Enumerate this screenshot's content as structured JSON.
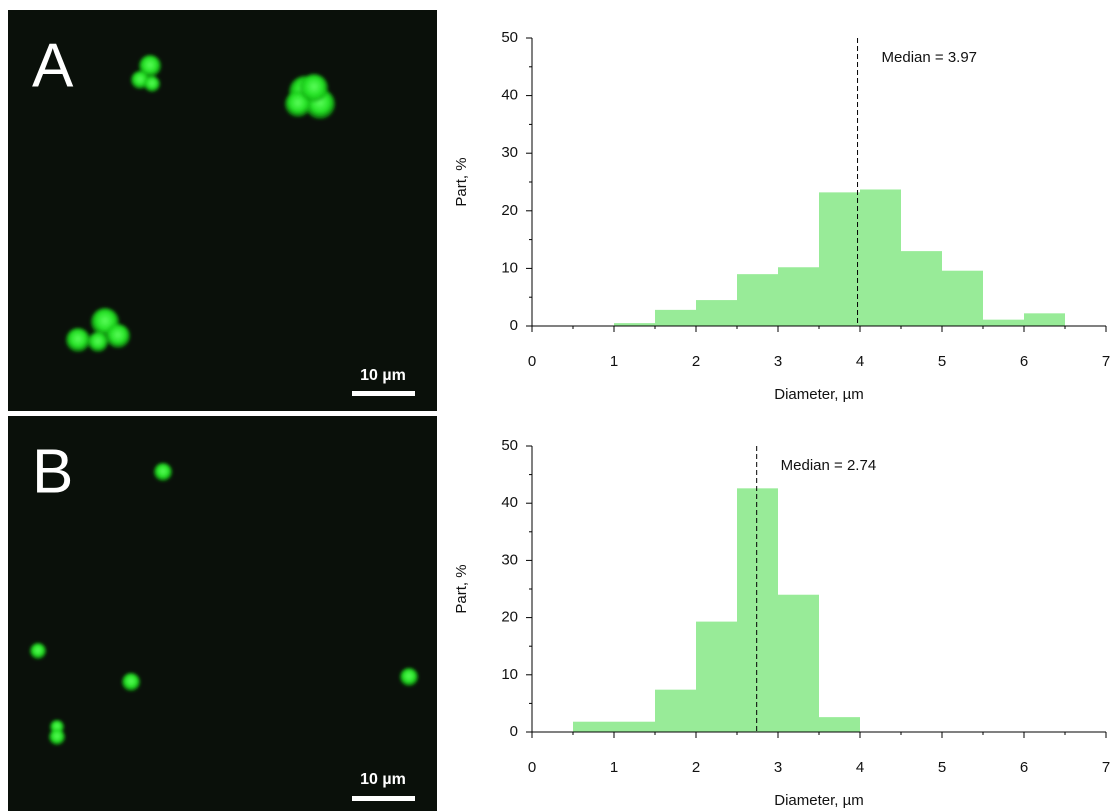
{
  "images": [
    {
      "label": "A",
      "scale_bar": "10 µm"
    },
    {
      "label": "B",
      "scale_bar": "10 µm"
    }
  ],
  "chart_data": [
    {
      "type": "histogram",
      "xlabel": "Diameter, µm",
      "ylabel": "Part, %",
      "color": "#98eb98",
      "bins": [
        1,
        1.5,
        2,
        2.5,
        3,
        3.5,
        4,
        4.5,
        5,
        5.5,
        6,
        6.5
      ],
      "values": [
        0.5,
        2.8,
        4.5,
        9,
        10.2,
        23.2,
        23.7,
        13,
        9.6,
        1.1,
        2.2
      ],
      "median": {
        "value": 3.97,
        "label": "Median = 3.97"
      },
      "xlim": [
        0,
        7
      ],
      "xticks": [
        0,
        1,
        2,
        3,
        4,
        5,
        6,
        7
      ],
      "ylim": [
        0,
        50
      ],
      "yticks": [
        0,
        10,
        20,
        30,
        40,
        50
      ]
    },
    {
      "type": "histogram",
      "xlabel": "Diameter, µm",
      "ylabel": "Part, %",
      "color": "#98eb98",
      "bins": [
        0.5,
        1,
        1.5,
        2,
        2.5,
        3,
        3.5,
        4
      ],
      "values": [
        1.8,
        1.8,
        7.4,
        19.3,
        42.6,
        24,
        2.6
      ],
      "median": {
        "value": 2.74,
        "label": "Median = 2.74"
      },
      "xlim": [
        0,
        7
      ],
      "xticks": [
        0,
        1,
        2,
        3,
        4,
        5,
        6,
        7
      ],
      "ylim": [
        0,
        50
      ],
      "yticks": [
        0,
        10,
        20,
        30,
        40,
        50
      ]
    }
  ]
}
